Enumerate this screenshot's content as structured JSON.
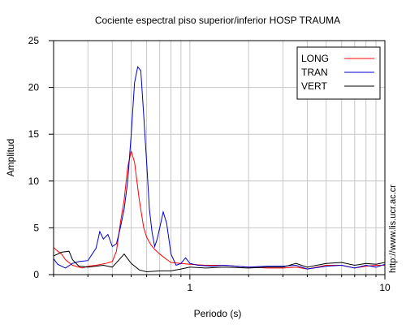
{
  "chart_data": {
    "type": "line",
    "title": "Cociente espectral piso superior/inferior  HOSP TRAUMA",
    "xlabel": "Periodo (s)",
    "ylabel": "Amplitud",
    "x_scale": "log",
    "xlim": [
      0.2,
      10
    ],
    "ylim": [
      0,
      25
    ],
    "x_tick_labels": [
      {
        "value": 1,
        "label": "1"
      },
      {
        "value": 10,
        "label": "10"
      }
    ],
    "y_ticks": [
      0,
      5,
      10,
      15,
      20,
      25
    ],
    "grid": true,
    "legend_position": "top-right",
    "watermark": "http://www.lis.ucr.ac.cr",
    "series": [
      {
        "name": "LONG",
        "color": "#ff0000",
        "points": [
          [
            0.2,
            2.9
          ],
          [
            0.21,
            2.5
          ],
          [
            0.22,
            2.2
          ],
          [
            0.23,
            1.6
          ],
          [
            0.25,
            1.0
          ],
          [
            0.28,
            0.7
          ],
          [
            0.3,
            0.9
          ],
          [
            0.33,
            1.0
          ],
          [
            0.37,
            1.2
          ],
          [
            0.4,
            1.4
          ],
          [
            0.42,
            2.5
          ],
          [
            0.44,
            5.5
          ],
          [
            0.46,
            8.0
          ],
          [
            0.48,
            11.5
          ],
          [
            0.5,
            13.2
          ],
          [
            0.52,
            12.0
          ],
          [
            0.55,
            8.0
          ],
          [
            0.58,
            5.0
          ],
          [
            0.6,
            4.0
          ],
          [
            0.63,
            3.2
          ],
          [
            0.66,
            2.7
          ],
          [
            0.7,
            2.2
          ],
          [
            0.75,
            1.7
          ],
          [
            0.8,
            1.3
          ],
          [
            0.9,
            1.2
          ],
          [
            1.0,
            1.1
          ],
          [
            1.2,
            1.0
          ],
          [
            1.5,
            1.0
          ],
          [
            2.0,
            0.8
          ],
          [
            2.5,
            0.7
          ],
          [
            3.0,
            0.7
          ],
          [
            3.5,
            0.8
          ],
          [
            4.0,
            0.6
          ],
          [
            5.0,
            1.0
          ],
          [
            6.0,
            1.0
          ],
          [
            7.0,
            0.7
          ],
          [
            8.0,
            0.9
          ],
          [
            9.0,
            1.0
          ],
          [
            10.0,
            1.0
          ]
        ]
      },
      {
        "name": "TRAN",
        "color": "#0000cc",
        "points": [
          [
            0.2,
            1.7
          ],
          [
            0.21,
            1.1
          ],
          [
            0.23,
            0.7
          ],
          [
            0.25,
            1.2
          ],
          [
            0.27,
            1.4
          ],
          [
            0.3,
            1.5
          ],
          [
            0.33,
            2.8
          ],
          [
            0.345,
            4.6
          ],
          [
            0.36,
            3.8
          ],
          [
            0.38,
            4.3
          ],
          [
            0.4,
            3.0
          ],
          [
            0.42,
            3.3
          ],
          [
            0.44,
            5.0
          ],
          [
            0.46,
            7.0
          ],
          [
            0.48,
            10.0
          ],
          [
            0.5,
            15.0
          ],
          [
            0.52,
            20.5
          ],
          [
            0.54,
            22.2
          ],
          [
            0.56,
            21.8
          ],
          [
            0.58,
            17.0
          ],
          [
            0.6,
            12.0
          ],
          [
            0.62,
            7.0
          ],
          [
            0.64,
            4.5
          ],
          [
            0.66,
            3.0
          ],
          [
            0.68,
            3.8
          ],
          [
            0.7,
            5.0
          ],
          [
            0.73,
            6.7
          ],
          [
            0.76,
            5.5
          ],
          [
            0.8,
            2.2
          ],
          [
            0.85,
            1.0
          ],
          [
            0.9,
            1.2
          ],
          [
            0.95,
            1.8
          ],
          [
            1.0,
            1.2
          ],
          [
            1.1,
            1.0
          ],
          [
            1.3,
            0.9
          ],
          [
            1.5,
            1.0
          ],
          [
            2.0,
            0.8
          ],
          [
            2.5,
            0.9
          ],
          [
            3.0,
            0.9
          ],
          [
            3.5,
            1.0
          ],
          [
            4.0,
            0.6
          ],
          [
            5.0,
            0.9
          ],
          [
            6.0,
            1.0
          ],
          [
            7.0,
            0.7
          ],
          [
            8.0,
            1.0
          ],
          [
            9.0,
            0.8
          ],
          [
            10.0,
            1.1
          ]
        ]
      },
      {
        "name": "VERT",
        "color": "#000000",
        "points": [
          [
            0.2,
            2.0
          ],
          [
            0.22,
            2.4
          ],
          [
            0.24,
            2.5
          ],
          [
            0.25,
            1.6
          ],
          [
            0.27,
            0.9
          ],
          [
            0.3,
            0.8
          ],
          [
            0.33,
            0.9
          ],
          [
            0.36,
            1.0
          ],
          [
            0.4,
            0.8
          ],
          [
            0.43,
            1.5
          ],
          [
            0.46,
            2.2
          ],
          [
            0.5,
            1.2
          ],
          [
            0.55,
            0.5
          ],
          [
            0.6,
            0.3
          ],
          [
            0.7,
            0.4
          ],
          [
            0.8,
            0.4
          ],
          [
            0.9,
            0.6
          ],
          [
            1.0,
            0.8
          ],
          [
            1.2,
            0.7
          ],
          [
            1.5,
            0.8
          ],
          [
            2.0,
            0.7
          ],
          [
            2.5,
            0.8
          ],
          [
            3.0,
            0.8
          ],
          [
            3.5,
            1.2
          ],
          [
            4.0,
            0.8
          ],
          [
            5.0,
            1.2
          ],
          [
            6.0,
            1.3
          ],
          [
            7.0,
            1.0
          ],
          [
            8.0,
            1.2
          ],
          [
            9.0,
            1.1
          ],
          [
            10.0,
            1.3
          ]
        ]
      }
    ]
  }
}
